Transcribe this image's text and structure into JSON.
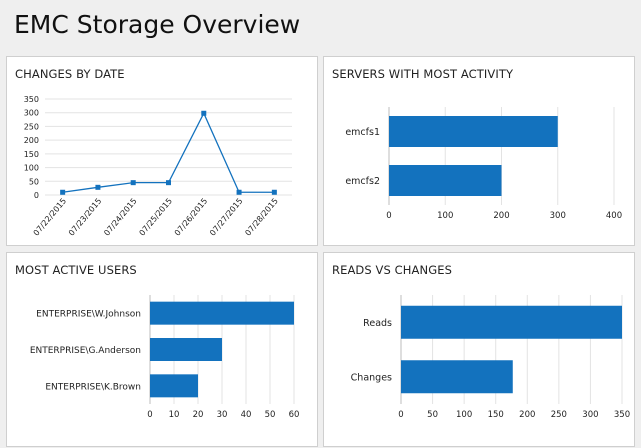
{
  "page": {
    "title": "EMC Storage Overview"
  },
  "colors": {
    "bar": "#1372be",
    "line": "#1372be",
    "grid": "#e3e3e3",
    "axis": "#bdbdbd"
  },
  "panels": {
    "changes_by_date": {
      "title": "CHANGES BY DATE"
    },
    "servers": {
      "title": "SERVERS WITH MOST ACTIVITY"
    },
    "users": {
      "title": "MOST ACTIVE USERS"
    },
    "reads_vs_changes": {
      "title": "READS VS CHANGES"
    }
  },
  "chart_data": [
    {
      "type": "line",
      "title": "CHANGES BY DATE",
      "x": [
        "07/22/2015",
        "07/23/2015",
        "07/24/2015",
        "07/25/2015",
        "07/26/2015",
        "07/27/2015",
        "07/28/2015"
      ],
      "series": [
        {
          "values": [
            10,
            28,
            45,
            45,
            298,
            10,
            10
          ]
        }
      ],
      "ylim": [
        0,
        350
      ],
      "yticks": [
        0,
        50,
        100,
        150,
        200,
        250,
        300,
        350
      ],
      "grid": true
    },
    {
      "type": "bar",
      "orientation": "horizontal",
      "title": "SERVERS WITH MOST ACTIVITY",
      "categories": [
        "emcfs1",
        "emcfs2"
      ],
      "values": [
        300,
        200
      ],
      "xlim": [
        0,
        400
      ],
      "xticks": [
        0,
        100,
        200,
        300,
        400
      ],
      "grid": true
    },
    {
      "type": "bar",
      "orientation": "horizontal",
      "title": "MOST ACTIVE USERS",
      "categories": [
        "ENTERPRISE\\W.Johnson",
        "ENTERPRISE\\G.Anderson",
        "ENTERPRISE\\K.Brown"
      ],
      "values": [
        60,
        30,
        20
      ],
      "xlim": [
        0,
        60
      ],
      "xticks": [
        0,
        10,
        20,
        30,
        40,
        50,
        60
      ],
      "grid": true
    },
    {
      "type": "bar",
      "orientation": "horizontal",
      "title": "READS VS CHANGES",
      "categories": [
        "Reads",
        "Changes"
      ],
      "values": [
        350,
        177
      ],
      "xlim": [
        0,
        350
      ],
      "xticks": [
        0,
        50,
        100,
        150,
        200,
        250,
        300,
        350
      ],
      "grid": true
    }
  ]
}
